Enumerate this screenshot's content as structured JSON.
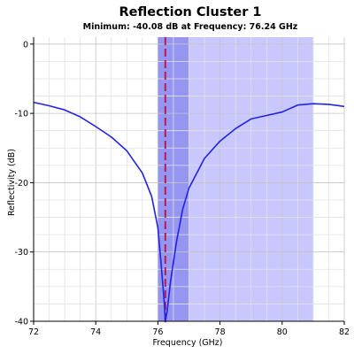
{
  "chart_data": {
    "type": "line",
    "title": "Reflection Cluster 1",
    "subtitle": "Minimum: -40.08 dB at Frequency: 76.24 GHz",
    "xlabel": "Frequency (GHz)",
    "ylabel": "Reflectivity (dB)",
    "xlim": [
      72,
      82
    ],
    "ylim": [
      -40,
      1
    ],
    "x_ticks": [
      72,
      74,
      76,
      78,
      80,
      82
    ],
    "x_tick_labels": [
      "72",
      "74",
      "76",
      "78",
      "80",
      "82"
    ],
    "y_ticks": [
      0,
      -10,
      -20,
      -30,
      -40
    ],
    "y_tick_labels": [
      "0",
      "-10",
      "-20",
      "-30",
      "-40"
    ],
    "x_minor_step": 0.5,
    "y_minor_step": 2.5,
    "grid": true,
    "legend": "none",
    "shaded_bands": [
      {
        "x0": 76.0,
        "x1": 81.0,
        "color": "#c8c8ff"
      },
      {
        "x0": 76.0,
        "x1": 77.0,
        "color": "#9696f2"
      }
    ],
    "markers": [
      {
        "x": 76.24,
        "y_min": -40.08,
        "color": "#b0204a",
        "style": "dashed"
      }
    ],
    "series": [
      {
        "color": "#2222e6",
        "x": [
          72.0,
          72.5,
          73.0,
          73.5,
          74.0,
          74.5,
          75.0,
          75.5,
          75.8,
          76.0,
          76.1,
          76.2,
          76.24,
          76.3,
          76.4,
          76.6,
          76.8,
          77.0,
          77.5,
          78.0,
          78.5,
          79.0,
          79.5,
          80.0,
          80.5,
          81.0,
          81.5,
          82.0
        ],
        "y": [
          -8.4,
          -8.9,
          -9.5,
          -10.5,
          -11.9,
          -13.4,
          -15.4,
          -18.6,
          -22.0,
          -26.5,
          -31.5,
          -37.0,
          -40.08,
          -38.5,
          -34.5,
          -28.5,
          -23.8,
          -20.8,
          -16.5,
          -14.0,
          -12.2,
          -10.8,
          -10.3,
          -9.8,
          -8.8,
          -8.6,
          -8.7,
          -9.0
        ]
      }
    ]
  }
}
